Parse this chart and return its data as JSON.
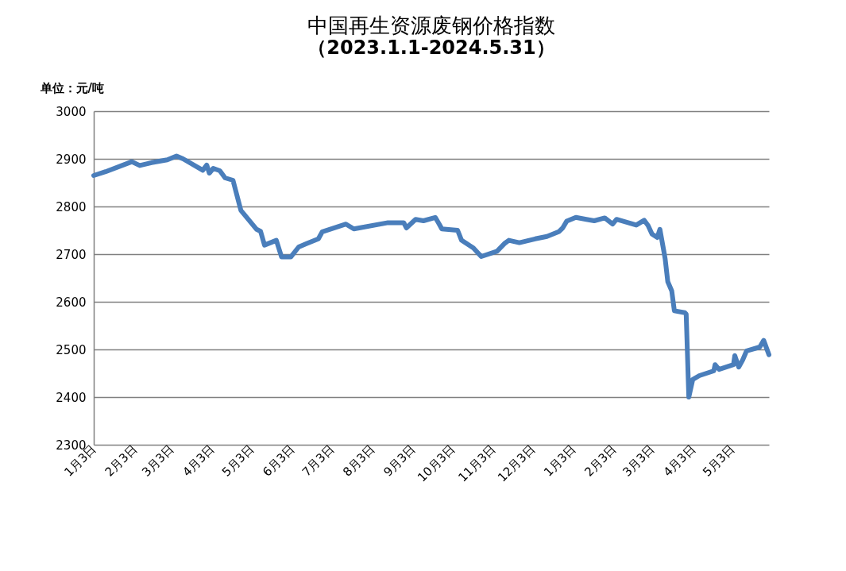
{
  "chart_data": {
    "type": "line",
    "title": "中国再生资源废钢价格指数",
    "subtitle": "（2023.1.1-2024.5.31）",
    "ylabel": "单位：元/吨",
    "x": [
      "2023-01-03",
      "2023-01-12",
      "2023-02-01",
      "2023-02-07",
      "2023-02-16",
      "2023-02-28",
      "2023-03-07",
      "2023-03-12",
      "2023-03-27",
      "2023-03-30",
      "2023-04-01",
      "2023-04-04",
      "2023-04-09",
      "2023-04-13",
      "2023-04-19",
      "2023-04-25",
      "2023-05-07",
      "2023-05-10",
      "2023-05-13",
      "2023-05-22",
      "2023-05-26",
      "2023-06-02",
      "2023-06-08",
      "2023-06-14",
      "2023-06-23",
      "2023-06-26",
      "2023-07-14",
      "2023-07-17",
      "2023-07-20",
      "2023-08-15",
      "2023-08-27",
      "2023-08-29",
      "2023-09-05",
      "2023-09-11",
      "2023-09-20",
      "2023-09-23",
      "2023-09-25",
      "2023-10-07",
      "2023-10-10",
      "2023-10-19",
      "2023-10-25",
      "2023-11-06",
      "2023-11-12",
      "2023-11-15",
      "2023-11-23",
      "2023-12-05",
      "2023-12-14",
      "2023-12-23",
      "2023-12-26",
      "2023-12-29",
      "2024-01-05",
      "2024-01-13",
      "2024-01-19",
      "2024-01-27",
      "2024-02-02",
      "2024-02-05",
      "2024-02-20",
      "2024-02-26",
      "2024-02-29",
      "2024-03-03",
      "2024-03-07",
      "2024-03-09",
      "2024-03-12",
      "2024-03-13",
      "2024-03-15",
      "2024-03-18",
      "2024-03-20",
      "2024-03-28",
      "2024-03-29",
      "2024-03-31",
      "2024-04-03",
      "2024-04-08",
      "2024-04-19",
      "2024-04-20",
      "2024-04-23",
      "2024-05-04",
      "2024-05-05",
      "2024-05-08",
      "2024-05-11",
      "2024-05-14",
      "2024-05-24",
      "2024-05-27",
      "2024-05-31"
    ],
    "series": [
      {
        "color": "#4a7ebb",
        "values": [
          2865,
          2873,
          2894,
          2886,
          2892,
          2898,
          2906,
          2900,
          2876,
          2887,
          2870,
          2880,
          2875,
          2860,
          2855,
          2792,
          2752,
          2748,
          2719,
          2729,
          2694,
          2694,
          2715,
          2722,
          2732,
          2747,
          2763,
          2758,
          2753,
          2766,
          2766,
          2755,
          2773,
          2770,
          2777,
          2763,
          2753,
          2750,
          2729,
          2713,
          2695,
          2706,
          2723,
          2729,
          2724,
          2732,
          2737,
          2747,
          2755,
          2769,
          2777,
          2773,
          2770,
          2776,
          2763,
          2773,
          2761,
          2771,
          2760,
          2742,
          2735,
          2752,
          2706,
          2690,
          2642,
          2623,
          2581,
          2577,
          2574,
          2400,
          2437,
          2445,
          2455,
          2468,
          2458,
          2468,
          2487,
          2463,
          2478,
          2497,
          2505,
          2519,
          2489
        ]
      }
    ],
    "xlim": [
      "2023-01-03",
      "2024-05-31"
    ],
    "xticks": [
      {
        "value": "2023-01-03",
        "label": "1月3日"
      },
      {
        "value": "2023-02-03",
        "label": "2月3日"
      },
      {
        "value": "2023-03-03",
        "label": "3月3日"
      },
      {
        "value": "2023-04-03",
        "label": "4月3日"
      },
      {
        "value": "2023-05-03",
        "label": "5月3日"
      },
      {
        "value": "2023-06-03",
        "label": "6月3日"
      },
      {
        "value": "2023-07-03",
        "label": "7月3日"
      },
      {
        "value": "2023-08-03",
        "label": "8月3日"
      },
      {
        "value": "2023-09-03",
        "label": "9月3日"
      },
      {
        "value": "2023-10-03",
        "label": "10月3日"
      },
      {
        "value": "2023-11-03",
        "label": "11月3日"
      },
      {
        "value": "2023-12-03",
        "label": "12月3日"
      },
      {
        "value": "2024-01-03",
        "label": "1月3日"
      },
      {
        "value": "2024-02-03",
        "label": "2月3日"
      },
      {
        "value": "2024-03-03",
        "label": "3月3日"
      },
      {
        "value": "2024-04-03",
        "label": "4月3日"
      },
      {
        "value": "2024-05-03",
        "label": "5月3日"
      }
    ],
    "ylim": [
      2300,
      3000
    ],
    "yticks": [
      2300,
      2400,
      2500,
      2600,
      2700,
      2800,
      2900,
      3000
    ],
    "grid": "y",
    "legend": false,
    "marker": "none",
    "line_style": "solid"
  }
}
